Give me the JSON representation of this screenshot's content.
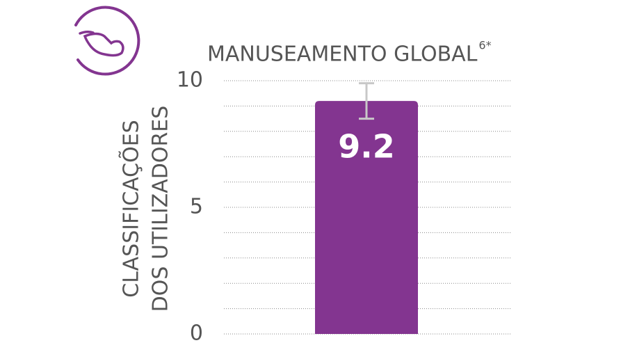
{
  "chart_data": {
    "type": "bar",
    "title": "MANUSEAMENTO GLOBAL",
    "title_superscript": "6*",
    "y_label": [
      "CLASSIFICAÇÕES",
      "DOS UTILIZADORES"
    ],
    "values": [
      9.2
    ],
    "error": [
      0.7
    ],
    "color": "#833590",
    "error_color": "#c8c8c8",
    "ylim": [
      0,
      10
    ],
    "yticks": [
      0,
      5,
      10
    ],
    "grid": true,
    "grid_lines": [
      0,
      1,
      2,
      3,
      4,
      5,
      6,
      7,
      8,
      9,
      10
    ]
  }
}
